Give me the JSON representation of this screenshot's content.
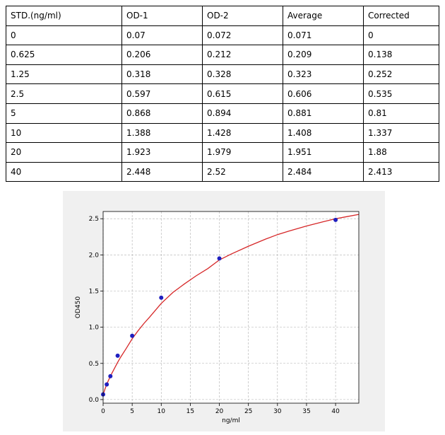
{
  "table": {
    "headers": [
      "STD.(ng/ml)",
      "OD-1",
      "OD-2",
      "Average",
      "Corrected"
    ],
    "rows": [
      [
        "0",
        "0.07",
        "0.072",
        "0.071",
        "0"
      ],
      [
        "0.625",
        "0.206",
        "0.212",
        "0.209",
        "0.138"
      ],
      [
        "1.25",
        "0.318",
        "0.328",
        "0.323",
        "0.252"
      ],
      [
        "2.5",
        "0.597",
        "0.615",
        "0.606",
        "0.535"
      ],
      [
        "5",
        "0.868",
        "0.894",
        "0.881",
        "0.81"
      ],
      [
        "10",
        "1.388",
        "1.428",
        "1.408",
        "1.337"
      ],
      [
        "20",
        "1.923",
        "1.979",
        "1.951",
        "1.88"
      ],
      [
        "40",
        "2.448",
        "2.52",
        "2.484",
        "2.413"
      ]
    ]
  },
  "chart_data": {
    "type": "scatter",
    "title": "",
    "xlabel": "ng/ml",
    "ylabel": "OD450",
    "xlim": [
      0,
      44
    ],
    "ylim": [
      -0.05,
      2.6
    ],
    "xticks": [
      0,
      5,
      10,
      15,
      20,
      25,
      30,
      35,
      40
    ],
    "yticks": [
      0.0,
      0.5,
      1.0,
      1.5,
      2.0,
      2.5
    ],
    "xtick_labels": [
      "0",
      "5",
      "10",
      "15",
      "20",
      "25",
      "30",
      "35",
      "40"
    ],
    "ytick_labels": [
      "0.0",
      "0.5",
      "1.0",
      "1.5",
      "2.0",
      "2.5"
    ],
    "grid": true,
    "points": {
      "x": [
        0,
        0.625,
        1.25,
        2.5,
        5,
        10,
        20,
        40
      ],
      "y": [
        0.071,
        0.209,
        0.323,
        0.606,
        0.881,
        1.408,
        1.951,
        2.484
      ]
    },
    "fit_curve": {
      "x": [
        0,
        0.25,
        0.5,
        0.625,
        1,
        1.25,
        1.5,
        2,
        2.5,
        3,
        4,
        5,
        6,
        7,
        8,
        10,
        12,
        14,
        16,
        18,
        20,
        22,
        25,
        28,
        30,
        32,
        35,
        38,
        40,
        42,
        44
      ],
      "y": [
        0.07,
        0.13,
        0.185,
        0.212,
        0.28,
        0.322,
        0.362,
        0.44,
        0.515,
        0.585,
        0.71,
        0.84,
        0.95,
        1.05,
        1.14,
        1.33,
        1.48,
        1.6,
        1.71,
        1.81,
        1.93,
        2.01,
        2.12,
        2.22,
        2.28,
        2.33,
        2.4,
        2.46,
        2.5,
        2.53,
        2.56
      ]
    },
    "colors": {
      "points": "#1f1fbf",
      "curve": "#d62728",
      "grid": "#b0b0b0",
      "plot_bg": "#ffffff",
      "figure_bg": "#f0f0f0"
    }
  }
}
